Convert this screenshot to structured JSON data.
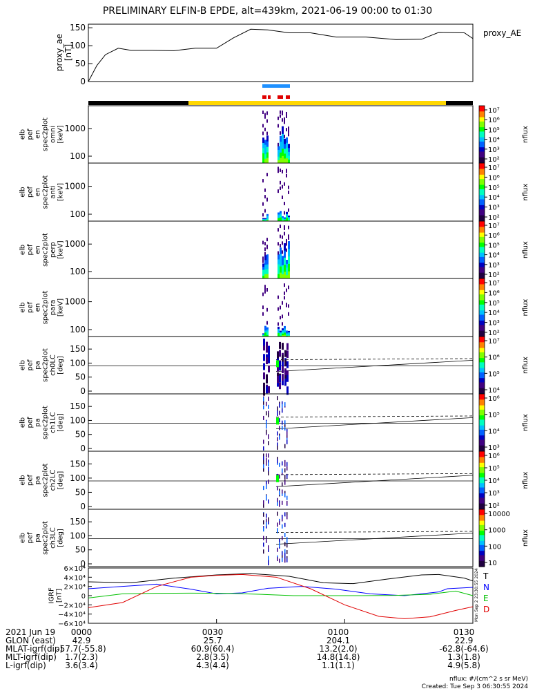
{
  "title": "PRELIMINARY ELFIN-B EPDE, alt=439km, 2021-06-19 00:00 to 01:30",
  "colors": {
    "science_zone": "#1e90ff",
    "burst": "#e00000",
    "sc_day": "#ffd700",
    "sc_night": "#000000"
  },
  "chart_data": [
    {
      "type": "line",
      "panel": "proxy_ae",
      "ylabel_lines": [
        "proxy_ae",
        "[nT]"
      ],
      "legend": "proxy_AE",
      "ylim": [
        0,
        160
      ],
      "yticks": [
        "150",
        "100",
        "50",
        "0"
      ],
      "x": [
        "00:00",
        "00:02",
        "00:04",
        "00:07",
        "00:10",
        "00:15",
        "00:20",
        "00:25",
        "00:30",
        "00:34",
        "00:38",
        "00:42",
        "00:47",
        "00:52",
        "00:58",
        "01:05",
        "01:12",
        "01:18",
        "01:22",
        "01:28",
        "01:30"
      ],
      "values": [
        0,
        45,
        75,
        93,
        87,
        87,
        86,
        93,
        93,
        122,
        146,
        144,
        136,
        136,
        124,
        124,
        117,
        118,
        137,
        136,
        120
      ]
    },
    {
      "type": "heatmap",
      "panel": "spectra",
      "yticks": [
        "1000",
        "100"
      ],
      "panels": [
        {
          "label_lines": [
            "elb",
            "pef",
            "en",
            "spec2plot",
            "omni",
            "[keV]"
          ]
        },
        {
          "label_lines": [
            "elb",
            "pef",
            "en",
            "spec2plot",
            "anti",
            "[keV]"
          ]
        },
        {
          "label_lines": [
            "elb",
            "pef",
            "en",
            "spec2plot",
            "perp",
            "[keV]"
          ]
        },
        {
          "label_lines": [
            "elb",
            "pef",
            "en",
            "spec2plot",
            "para",
            "[keV]"
          ]
        }
      ],
      "colorbar": {
        "label": "nflux",
        "ticks": [
          "10⁷",
          "10⁶",
          "10⁵",
          "10⁴",
          "10³",
          "10²"
        ]
      }
    },
    {
      "type": "heatmap",
      "panel": "pitch_angle",
      "yticks": [
        "150",
        "100",
        "50",
        "0"
      ],
      "panels": [
        {
          "label_lines": [
            "elb",
            "pef",
            "pa",
            "spec2plot",
            "ch0LC",
            "[deg]"
          ],
          "cbar_ticks": [
            "10⁷",
            "10⁶",
            "10⁵",
            "10⁴"
          ]
        },
        {
          "label_lines": [
            "elb",
            "pef",
            "pa",
            "spec2plot",
            "ch1LC",
            "[deg]"
          ],
          "cbar_ticks": [
            "10⁶",
            "10⁵",
            "10⁴",
            "10³"
          ]
        },
        {
          "label_lines": [
            "elb",
            "pef",
            "pa",
            "spec2plot",
            "ch2LC",
            "[deg]"
          ],
          "cbar_ticks": [
            "10⁶",
            "10⁵",
            "10⁴",
            "10³",
            "10²"
          ]
        },
        {
          "label_lines": [
            "elb",
            "pef",
            "pa",
            "spec2plot",
            "ch3LC",
            "[deg]"
          ],
          "cbar_ticks": [
            "10000",
            "1000",
            "100",
            "10"
          ]
        }
      ],
      "colorbar_label": "nflux"
    },
    {
      "type": "line",
      "panel": "igrf",
      "ylabel_lines": [
        "IGRF",
        "[nT]"
      ],
      "yticks": [
        "6×10⁴",
        "4×10⁴",
        "2×10⁴",
        "0",
        "−2×10⁴",
        "−4×10⁴",
        "−6×10⁴"
      ],
      "ylim": [
        -60000,
        60000
      ],
      "series": [
        {
          "name": "T",
          "color": "#000000",
          "x": [
            0,
            10,
            20,
            30,
            38,
            47,
            55,
            62,
            70,
            78,
            82,
            88,
            90
          ],
          "values": [
            30000,
            28000,
            38000,
            45000,
            48000,
            42000,
            28000,
            26000,
            36000,
            45000,
            46000,
            38000,
            32000
          ]
        },
        {
          "name": "N",
          "color": "#0000ff",
          "x": [
            0,
            8,
            16,
            24,
            30,
            36,
            42,
            50,
            58,
            66,
            74,
            82,
            84,
            90
          ],
          "values": [
            15000,
            20000,
            25000,
            14000,
            4000,
            6000,
            16000,
            20000,
            14000,
            4000,
            0,
            8000,
            15000,
            18000
          ]
        },
        {
          "name": "E",
          "color": "#00c000",
          "x": [
            0,
            8,
            16,
            24,
            32,
            40,
            48,
            56,
            64,
            72,
            80,
            86,
            90
          ],
          "values": [
            -5000,
            4000,
            5000,
            5500,
            5000,
            3000,
            0,
            0,
            0,
            500,
            3000,
            10000,
            0
          ]
        },
        {
          "name": "D",
          "color": "#e00000",
          "x": [
            0,
            8,
            16,
            24,
            30,
            36,
            44,
            52,
            60,
            68,
            74,
            80,
            86,
            90
          ],
          "values": [
            -26000,
            -15000,
            20000,
            40000,
            44000,
            46000,
            40000,
            15000,
            -20000,
            -45000,
            -50000,
            -46000,
            -32000,
            -24000
          ]
        }
      ]
    }
  ],
  "overlays": {
    "line_fit_label": ""
  },
  "x_axis": {
    "ticks": [
      "0000",
      "0030",
      "0100",
      "0130"
    ]
  },
  "orbit_table": {
    "rows": [
      {
        "label": "2021 Jun 19",
        "values": [
          "0000",
          "0030",
          "0100",
          "0130"
        ]
      },
      {
        "label": "GLON (east)",
        "values": [
          "42.9",
          "25.7",
          "204.1",
          "22.9"
        ]
      },
      {
        "label": "MLAT-igrf(dip)",
        "values": [
          "-57.7(-55.8)",
          "60.9(60.4)",
          "13.2(2.0)",
          "-62.8(-64.6)"
        ]
      },
      {
        "label": "MLT-igrf(dip)",
        "values": [
          "1.7(2.3)",
          "2.8(3.5)",
          "14.8(14.8)",
          "1.3(1.8)"
        ]
      },
      {
        "label": "L-igrf(dip)",
        "values": [
          "3.6(3.4)",
          "4.3(4.4)",
          "1.1(1.1)",
          "4.9(5.8)"
        ]
      }
    ]
  },
  "footer": {
    "units": "nflux: #/(cm^2 s sr MeV)",
    "created": "Created: Tue Sep  3 06:30:55 2024",
    "side_stamp": "Mon Sep  2 23:30:55 2024"
  }
}
